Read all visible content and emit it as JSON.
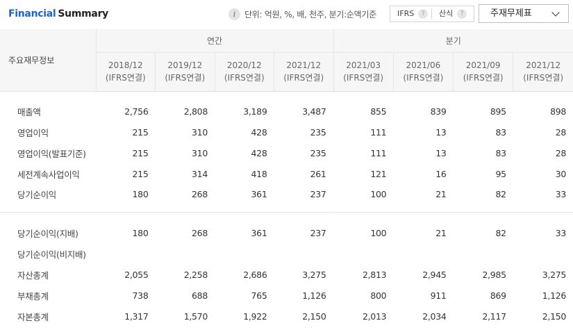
{
  "header": {
    "title_accent": "Financial",
    "title_rest": "Summary",
    "info_icon": "info-icon",
    "unit_text": "단위: 억원, %, 배, 천주, 분기:순액기준",
    "toggle_ifrs": "IFRS",
    "toggle_calc": "산식",
    "help_glyph": "?",
    "select_value": "주재무제표"
  },
  "table": {
    "row_header_label": "주요재무정보",
    "group_annual": "연간",
    "group_quarterly": "분기",
    "columns": [
      {
        "period": "2018/12",
        "basis": "(IFRS연결)"
      },
      {
        "period": "2019/12",
        "basis": "(IFRS연결)"
      },
      {
        "period": "2020/12",
        "basis": "(IFRS연결)"
      },
      {
        "period": "2021/12",
        "basis": "(IFRS연결)"
      },
      {
        "period": "2021/03",
        "basis": "(IFRS연결)"
      },
      {
        "period": "2021/06",
        "basis": "(IFRS연결)"
      },
      {
        "period": "2021/09",
        "basis": "(IFRS연결)"
      },
      {
        "period": "2021/12",
        "basis": "(IFRS연결)"
      }
    ],
    "rows": [
      {
        "label": "매출액",
        "values": [
          "2,756",
          "2,808",
          "3,189",
          "3,487",
          "855",
          "839",
          "895",
          "898"
        ]
      },
      {
        "label": "영업이익",
        "values": [
          "215",
          "310",
          "428",
          "235",
          "111",
          "13",
          "83",
          "28"
        ]
      },
      {
        "label": "영업이익(발표기준)",
        "values": [
          "215",
          "310",
          "428",
          "235",
          "111",
          "13",
          "83",
          "28"
        ]
      },
      {
        "label": "세전계속사업이익",
        "values": [
          "215",
          "314",
          "418",
          "261",
          "121",
          "16",
          "95",
          "30"
        ]
      },
      {
        "label": "당기순이익",
        "values": [
          "180",
          "268",
          "361",
          "237",
          "100",
          "21",
          "82",
          "33"
        ]
      },
      {
        "label": "당기순이익(지배)",
        "values": [
          "180",
          "268",
          "361",
          "237",
          "100",
          "21",
          "82",
          "33"
        ]
      },
      {
        "label": "당기순이익(비지배)",
        "values": [
          "",
          "",
          "",
          "",
          "",
          "",
          "",
          ""
        ]
      },
      {
        "label": "자산총계",
        "values": [
          "2,055",
          "2,258",
          "2,686",
          "3,275",
          "2,813",
          "2,945",
          "2,985",
          "3,275"
        ]
      },
      {
        "label": "부채총계",
        "values": [
          "738",
          "688",
          "765",
          "1,126",
          "800",
          "911",
          "869",
          "1,126"
        ]
      },
      {
        "label": "자본총계",
        "values": [
          "1,317",
          "1,570",
          "1,922",
          "2,150",
          "2,013",
          "2,034",
          "2,117",
          "2,150"
        ]
      }
    ]
  },
  "colors": {
    "accent": "#1a66c9",
    "header_bg": "#f6f6f6",
    "border": "#e6e6e6"
  }
}
